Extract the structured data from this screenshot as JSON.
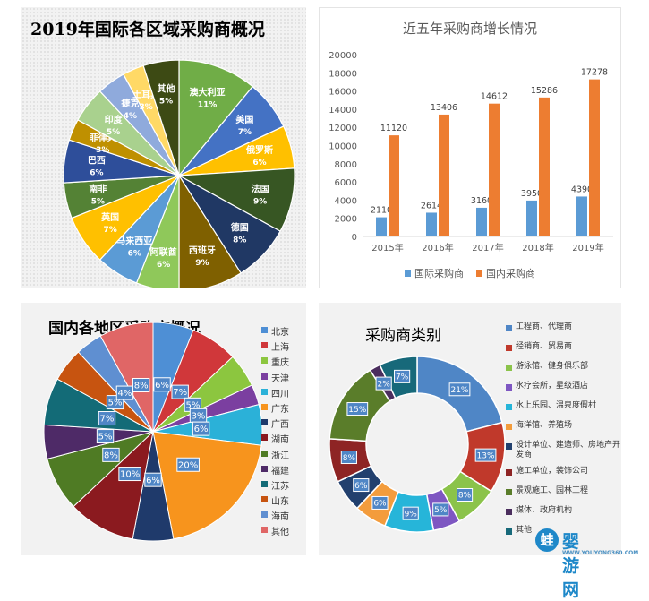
{
  "charts": [
    {
      "title": "2019年国际各区域采购商概况",
      "chart_data": {
        "type": "pie",
        "title": "2019年国际各区域采购商概况",
        "slices": [
          {
            "label": "澳大利亚",
            "value": 11,
            "color": "#70ad47"
          },
          {
            "label": "美国",
            "value": 7,
            "color": "#4472c4"
          },
          {
            "label": "俄罗斯",
            "value": 6,
            "color": "#ffc000"
          },
          {
            "label": "法国",
            "value": 9,
            "color": "#375623"
          },
          {
            "label": "德国",
            "value": 8,
            "color": "#203864"
          },
          {
            "label": "西班牙",
            "value": 9,
            "color": "#7f6000"
          },
          {
            "label": "阿联酋",
            "value": 6,
            "color": "#8fc85a"
          },
          {
            "label": "马来西亚",
            "value": 6,
            "color": "#5b9bd5"
          },
          {
            "label": "英国",
            "value": 7,
            "color": "#ffc000"
          },
          {
            "label": "南非",
            "value": 5,
            "color": "#548235"
          },
          {
            "label": "巴西",
            "value": 6,
            "color": "#2e4e9a"
          },
          {
            "label": "菲律宾",
            "value": 3,
            "color": "#bf9000"
          },
          {
            "label": "印度",
            "value": 5,
            "color": "#a9d18e"
          },
          {
            "label": "捷克",
            "value": 4,
            "color": "#8faadc"
          },
          {
            "label": "土耳其",
            "value": 3,
            "color": "#ffd966"
          },
          {
            "label": "其他",
            "value": 5,
            "color": "#3d4a14"
          }
        ]
      }
    },
    {
      "title": "近五年采购商增长情况",
      "chart_data": {
        "type": "bar",
        "title": "近五年采购商增长情况",
        "categories": [
          "2015年",
          "2016年",
          "2017年",
          "2018年",
          "2019年"
        ],
        "series": [
          {
            "name": "国际采购商",
            "values": [
              2110,
              2614,
              3160,
              3950,
              4390
            ],
            "color": "#5b9bd5"
          },
          {
            "name": "国内采购商",
            "values": [
              11120,
              13406,
              14612,
              15286,
              17278
            ],
            "color": "#ed7d31"
          }
        ],
        "ylim": [
          0,
          20000
        ],
        "yticks": [
          "0",
          "2000",
          "4000",
          "6000",
          "8000",
          "10000",
          "12000",
          "14000",
          "16000",
          "18000",
          "20000"
        ],
        "grid": false,
        "legend": "bottom"
      }
    },
    {
      "title": "国内各地区采购商概况",
      "chart_data": {
        "type": "pie",
        "title": "国内各地区采购商概况",
        "legend": "right",
        "slices": [
          {
            "label": "北京",
            "value": 6,
            "color": "#4e8fd5"
          },
          {
            "label": "上海",
            "value": 7,
            "color": "#d0373a"
          },
          {
            "label": "重庆",
            "value": 5,
            "color": "#8cc63f"
          },
          {
            "label": "天津",
            "value": 3,
            "color": "#7b3fa0"
          },
          {
            "label": "四川",
            "value": 6,
            "color": "#2bb1d8"
          },
          {
            "label": "广东",
            "value": 20,
            "color": "#f7941d"
          },
          {
            "label": "广西",
            "value": 6,
            "color": "#1f3a6b"
          },
          {
            "label": "湖南",
            "value": 10,
            "color": "#8b1a1f"
          },
          {
            "label": "浙江",
            "value": 8,
            "color": "#4f7b24"
          },
          {
            "label": "福建",
            "value": 5,
            "color": "#4e2a67"
          },
          {
            "label": "江苏",
            "value": 7,
            "color": "#136b77"
          },
          {
            "label": "山东",
            "value": 5,
            "color": "#c75410"
          },
          {
            "label": "海南",
            "value": 4,
            "color": "#5f8fd1"
          },
          {
            "label": "其他",
            "value": 8,
            "color": "#e06666"
          }
        ],
        "slice_labels": [
          "6%",
          "7%",
          "5%",
          "3%",
          "6%",
          "20%",
          "6%",
          "10%",
          "8%",
          "5%",
          "7%",
          "5%",
          "4%",
          "8%"
        ]
      }
    },
    {
      "title": "采购商类别",
      "chart_data": {
        "type": "pie",
        "title": "采购商类别",
        "legend": "right",
        "slices": [
          {
            "label": "工程商、代理商",
            "value": 21,
            "color": "#4f86c6"
          },
          {
            "label": "经销商、贸易商",
            "value": 13,
            "color": "#c0392b"
          },
          {
            "label": "游泳馆、健身俱乐部",
            "value": 8,
            "color": "#8bc34a"
          },
          {
            "label": "水疗会所，星级酒店",
            "value": 5,
            "color": "#7e57c2"
          },
          {
            "label": "水上乐园、温泉度假村",
            "value": 9,
            "color": "#26b5d9"
          },
          {
            "label": "海洋馆、养殖场",
            "value": 6,
            "color": "#f39c3c"
          },
          {
            "label": "设计单位、建造师、房地产开发商",
            "value": 6,
            "color": "#22406e"
          },
          {
            "label": "施工单位，装饰公司",
            "value": 8,
            "color": "#8e2424"
          },
          {
            "label": "景观施工、园林工程",
            "value": 15,
            "color": "#5a7d2a"
          },
          {
            "label": "媒体、政府机构",
            "value": 2,
            "color": "#4b2e5e"
          },
          {
            "label": "其他",
            "value": 7,
            "color": "#17697a"
          }
        ],
        "slice_labels": [
          "21%",
          "13%",
          "8%",
          "5%",
          "9%",
          "6%",
          "6%",
          "8%",
          "15%",
          "2%",
          "7%"
        ]
      }
    }
  ],
  "watermark": {
    "name": "婴游网",
    "url": "WWW.YOUYONG360.COM",
    "logo": "蛙"
  }
}
